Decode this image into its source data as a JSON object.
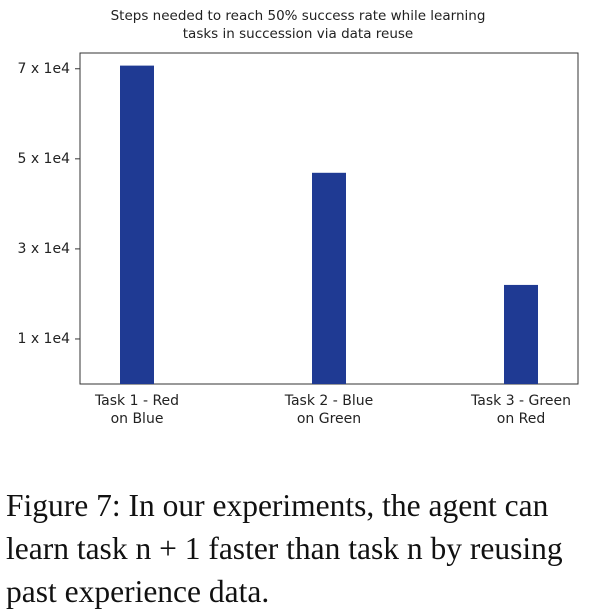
{
  "chart_data": {
    "type": "bar",
    "title": "Steps needed to reach 50% success rate while learning\ntasks in succession via data reuse",
    "categories": [
      "Task 1 - Red\non Blue",
      "Task 2 - Blue\non Green",
      "Task 3 - Green\non Red"
    ],
    "values": [
      70700,
      46900,
      22000
    ],
    "color": "#1f3a93",
    "ylim": [
      0,
      73500
    ],
    "yticks": [
      {
        "value": 10000,
        "label": "1 x 1e4"
      },
      {
        "value": 30000,
        "label": "3 x 1e4"
      },
      {
        "value": 50000,
        "label": "5 x 1e4"
      },
      {
        "value": 70000,
        "label": "7 x 1e4"
      }
    ],
    "grid": false
  },
  "caption": "Figure 7: In our experiments, the agent can learn task n + 1 faster than task n by reusing past experience data."
}
